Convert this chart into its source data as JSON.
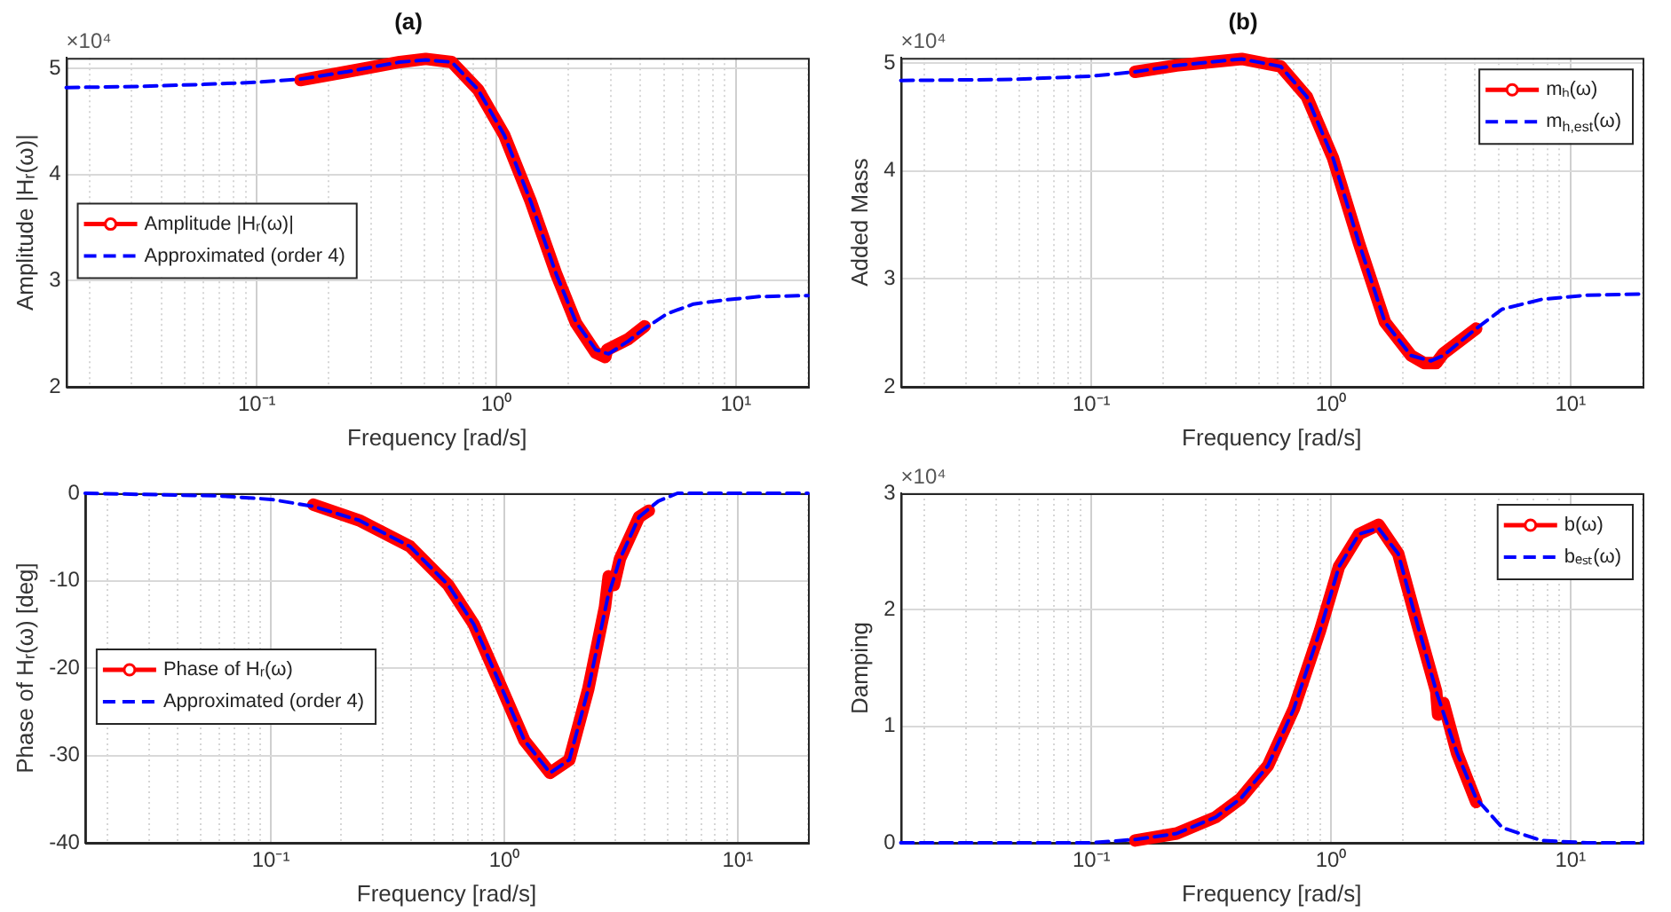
{
  "chart_data": [
    {
      "type": "line",
      "title": "(a)",
      "xlabel": "Frequency [rad/s]",
      "ylabel": "Amplitude |Hᵣ(ω)|",
      "annotations": [
        "×10⁴"
      ],
      "log": "x",
      "grid": true,
      "legend": "left",
      "xlim": [
        0.016,
        20
      ],
      "xticks": [
        {
          "value": 0.02,
          "label": null
        },
        {
          "value": 0.03,
          "label": null
        },
        {
          "value": 0.04,
          "label": null
        },
        {
          "value": 0.05,
          "label": null
        },
        {
          "value": 0.06,
          "label": null
        },
        {
          "value": 0.07,
          "label": null
        },
        {
          "value": 0.08,
          "label": null
        },
        {
          "value": 0.09,
          "label": null
        },
        {
          "value": 0.1,
          "label": "10⁻¹"
        },
        {
          "value": 0.2,
          "label": null
        },
        {
          "value": 0.3,
          "label": null
        },
        {
          "value": 0.4,
          "label": null
        },
        {
          "value": 0.5,
          "label": null
        },
        {
          "value": 0.6,
          "label": null
        },
        {
          "value": 0.7,
          "label": null
        },
        {
          "value": 0.8,
          "label": null
        },
        {
          "value": 0.9,
          "label": null
        },
        {
          "value": 1,
          "label": "10⁰"
        },
        {
          "value": 2,
          "label": null
        },
        {
          "value": 3,
          "label": null
        },
        {
          "value": 4,
          "label": null
        },
        {
          "value": 5,
          "label": null
        },
        {
          "value": 6,
          "label": null
        },
        {
          "value": 7,
          "label": null
        },
        {
          "value": 8,
          "label": null
        },
        {
          "value": 9,
          "label": null
        },
        {
          "value": 10,
          "label": "10¹"
        },
        {
          "value": 20,
          "label": null
        }
      ],
      "ylim": [
        2,
        5.1
      ],
      "yticks": [
        2,
        3,
        4,
        5
      ],
      "series": [
        {
          "name": "Amplitude |Hᵣ(ω)|",
          "color": "#ff0000",
          "marker": "circle",
          "line_style": "solid",
          "x": [
            0.152,
            0.239,
            0.395,
            0.507,
            0.652,
            0.839,
            1.08,
            1.39,
            1.78,
            2.15,
            2.6,
            2.85,
            2.9,
            3.55,
            4.16
          ],
          "values": [
            4.89,
            4.97,
            5.06,
            5.09,
            5.06,
            4.8,
            4.37,
            3.75,
            3.06,
            2.6,
            2.32,
            2.28,
            2.35,
            2.45,
            2.57
          ]
        },
        {
          "name": "Approximated (order 4)",
          "color": "#0000ff",
          "marker": "none",
          "line_style": "dashed",
          "x": [
            0.016,
            0.032,
            0.06,
            0.1,
            0.152,
            0.239,
            0.395,
            0.507,
            0.652,
            0.839,
            1.08,
            1.39,
            1.78,
            2.15,
            2.6,
            2.94,
            3.55,
            4.16,
            5.18,
            6.66,
            9.11,
            12.5,
            20
          ],
          "values": [
            4.82,
            4.83,
            4.85,
            4.87,
            4.9,
            4.97,
            5.06,
            5.08,
            5.06,
            4.8,
            4.37,
            3.75,
            3.06,
            2.61,
            2.35,
            2.31,
            2.43,
            2.55,
            2.69,
            2.78,
            2.82,
            2.85,
            2.86
          ]
        }
      ]
    },
    {
      "type": "line",
      "title": "(b)",
      "xlabel": "Frequency [rad/s]",
      "ylabel": "Added Mass",
      "annotations": [
        "×10⁴"
      ],
      "log": "x",
      "grid": true,
      "legend": "top right",
      "xlim": [
        0.016,
        20
      ],
      "xticks": [
        {
          "value": 0.02,
          "label": null
        },
        {
          "value": 0.03,
          "label": null
        },
        {
          "value": 0.04,
          "label": null
        },
        {
          "value": 0.05,
          "label": null
        },
        {
          "value": 0.06,
          "label": null
        },
        {
          "value": 0.07,
          "label": null
        },
        {
          "value": 0.08,
          "label": null
        },
        {
          "value": 0.09,
          "label": null
        },
        {
          "value": 0.1,
          "label": "10⁻¹"
        },
        {
          "value": 0.2,
          "label": null
        },
        {
          "value": 0.3,
          "label": null
        },
        {
          "value": 0.4,
          "label": null
        },
        {
          "value": 0.5,
          "label": null
        },
        {
          "value": 0.6,
          "label": null
        },
        {
          "value": 0.7,
          "label": null
        },
        {
          "value": 0.8,
          "label": null
        },
        {
          "value": 0.9,
          "label": null
        },
        {
          "value": 1,
          "label": "10⁰"
        },
        {
          "value": 2,
          "label": null
        },
        {
          "value": 3,
          "label": null
        },
        {
          "value": 4,
          "label": null
        },
        {
          "value": 5,
          "label": null
        },
        {
          "value": 6,
          "label": null
        },
        {
          "value": 7,
          "label": null
        },
        {
          "value": 8,
          "label": null
        },
        {
          "value": 9,
          "label": null
        },
        {
          "value": 10,
          "label": "10¹"
        },
        {
          "value": 20,
          "label": null
        }
      ],
      "ylim": [
        2,
        5.05
      ],
      "yticks": [
        2,
        3,
        4,
        5
      ],
      "series": [
        {
          "name": "mₕ(ω)",
          "color": "#ff0000",
          "marker": "circle",
          "line_style": "solid",
          "x": [
            0.152,
            0.227,
            0.424,
            0.617,
            0.793,
            1.02,
            1.31,
            1.68,
            2.16,
            2.45,
            2.75,
            2.95,
            4.04
          ],
          "values": [
            4.92,
            4.98,
            5.04,
            4.97,
            4.69,
            4.12,
            3.33,
            2.6,
            2.29,
            2.22,
            2.22,
            2.31,
            2.54
          ]
        },
        {
          "name": "m$_{h,est}$(ω)",
          "color": "#0000ff",
          "marker": "none",
          "line_style": "dashed",
          "x": [
            0.016,
            0.047,
            0.1,
            0.152,
            0.227,
            0.424,
            0.617,
            0.793,
            1.02,
            1.31,
            1.68,
            2.16,
            2.61,
            2.95,
            4.04,
            5.19,
            7.56,
            11.7,
            20
          ],
          "values": [
            4.84,
            4.85,
            4.88,
            4.92,
            4.98,
            5.04,
            4.97,
            4.69,
            4.12,
            3.33,
            2.6,
            2.29,
            2.24,
            2.29,
            2.54,
            2.72,
            2.81,
            2.85,
            2.86
          ]
        }
      ]
    },
    {
      "type": "line",
      "xlabel": "Frequency [rad/s]",
      "ylabel": "Phase of Hᵣ(ω) [deg]",
      "log": "x",
      "grid": true,
      "legend": "left",
      "xlim": [
        0.016,
        20
      ],
      "xticks": [
        {
          "value": 0.02,
          "label": null
        },
        {
          "value": 0.03,
          "label": null
        },
        {
          "value": 0.04,
          "label": null
        },
        {
          "value": 0.05,
          "label": null
        },
        {
          "value": 0.06,
          "label": null
        },
        {
          "value": 0.07,
          "label": null
        },
        {
          "value": 0.08,
          "label": null
        },
        {
          "value": 0.09,
          "label": null
        },
        {
          "value": 0.1,
          "label": "10⁻¹"
        },
        {
          "value": 0.2,
          "label": null
        },
        {
          "value": 0.3,
          "label": null
        },
        {
          "value": 0.4,
          "label": null
        },
        {
          "value": 0.5,
          "label": null
        },
        {
          "value": 0.6,
          "label": null
        },
        {
          "value": 0.7,
          "label": null
        },
        {
          "value": 0.8,
          "label": null
        },
        {
          "value": 0.9,
          "label": null
        },
        {
          "value": 1,
          "label": "10⁰"
        },
        {
          "value": 2,
          "label": null
        },
        {
          "value": 3,
          "label": null
        },
        {
          "value": 4,
          "label": null
        },
        {
          "value": 5,
          "label": null
        },
        {
          "value": 6,
          "label": null
        },
        {
          "value": 7,
          "label": null
        },
        {
          "value": 8,
          "label": null
        },
        {
          "value": 9,
          "label": null
        },
        {
          "value": 10,
          "label": "10¹"
        },
        {
          "value": 20,
          "label": null
        }
      ],
      "ylim": [
        -40,
        0
      ],
      "yticks": [
        -40,
        -30,
        -20,
        -10,
        0
      ],
      "series": [
        {
          "name": "Phase of Hᵣ(ω)",
          "color": "#ff0000",
          "marker": "circle",
          "line_style": "solid",
          "x": [
            0.152,
            0.239,
            0.395,
            0.575,
            0.74,
            0.95,
            1.22,
            1.57,
            1.9,
            2.29,
            2.7,
            2.8,
            2.95,
            3.13,
            3.78,
            4.16
          ],
          "values": [
            -1.3,
            -3.1,
            -6.1,
            -10.5,
            -15,
            -21.6,
            -28.3,
            -32,
            -30.5,
            -22.4,
            -13,
            -9.5,
            -10.5,
            -7.5,
            -2.7,
            -2
          ]
        },
        {
          "name": "Approximated (order 4)",
          "color": "#0000ff",
          "marker": "none",
          "line_style": "dashed",
          "x": [
            0.016,
            0.06,
            0.1,
            0.152,
            0.239,
            0.395,
            0.575,
            0.74,
            0.95,
            1.22,
            1.57,
            1.9,
            2.29,
            2.77,
            3.13,
            3.78,
            4.57,
            5.52,
            7.1,
            20
          ],
          "values": [
            0,
            -0.3,
            -0.7,
            -1.5,
            -3.1,
            -6.1,
            -10.5,
            -15,
            -21.6,
            -28.3,
            -32,
            -30.5,
            -22.4,
            -12,
            -7.5,
            -2.7,
            -0.9,
            0,
            0,
            0
          ]
        }
      ]
    },
    {
      "type": "line",
      "xlabel": "Frequency [rad/s]",
      "ylabel": "Damping",
      "annotations": [
        "×10⁴"
      ],
      "log": "x",
      "grid": true,
      "legend": "top right",
      "xlim": [
        0.016,
        20
      ],
      "xticks": [
        {
          "value": 0.02,
          "label": null
        },
        {
          "value": 0.03,
          "label": null
        },
        {
          "value": 0.04,
          "label": null
        },
        {
          "value": 0.05,
          "label": null
        },
        {
          "value": 0.06,
          "label": null
        },
        {
          "value": 0.07,
          "label": null
        },
        {
          "value": 0.08,
          "label": null
        },
        {
          "value": 0.09,
          "label": null
        },
        {
          "value": 0.1,
          "label": "10⁻¹"
        },
        {
          "value": 0.2,
          "label": null
        },
        {
          "value": 0.3,
          "label": null
        },
        {
          "value": 0.4,
          "label": null
        },
        {
          "value": 0.5,
          "label": null
        },
        {
          "value": 0.6,
          "label": null
        },
        {
          "value": 0.7,
          "label": null
        },
        {
          "value": 0.8,
          "label": null
        },
        {
          "value": 0.9,
          "label": null
        },
        {
          "value": 1,
          "label": "10⁰"
        },
        {
          "value": 2,
          "label": null
        },
        {
          "value": 3,
          "label": null
        },
        {
          "value": 4,
          "label": null
        },
        {
          "value": 5,
          "label": null
        },
        {
          "value": 6,
          "label": null
        },
        {
          "value": 7,
          "label": null
        },
        {
          "value": 8,
          "label": null
        },
        {
          "value": 9,
          "label": null
        },
        {
          "value": 10,
          "label": "10¹"
        },
        {
          "value": 20,
          "label": null
        }
      ],
      "ylim": [
        0,
        3
      ],
      "yticks": [
        0,
        1,
        2,
        3
      ],
      "series": [
        {
          "name": "b(ω)",
          "color": "#ff0000",
          "marker": "circle",
          "line_style": "solid",
          "x": [
            0.152,
            0.227,
            0.33,
            0.42,
            0.545,
            0.7,
            0.9,
            1.08,
            1.31,
            1.58,
            1.91,
            2.3,
            2.75,
            2.8,
            2.95,
            3.36,
            4.04
          ],
          "values": [
            0.02,
            0.08,
            0.22,
            0.38,
            0.66,
            1.15,
            1.82,
            2.37,
            2.65,
            2.73,
            2.48,
            1.87,
            1.3,
            1.1,
            1.2,
            0.77,
            0.35
          ]
        },
        {
          "name": "bₑₛₜ(ω)",
          "color": "#0000ff",
          "marker": "none",
          "line_style": "dashed",
          "x": [
            0.016,
            0.1,
            0.155,
            0.227,
            0.33,
            0.42,
            0.545,
            0.7,
            0.9,
            1.08,
            1.31,
            1.58,
            1.91,
            2.3,
            2.78,
            3.36,
            4.04,
            5.19,
            7.56,
            11.7,
            20
          ],
          "values": [
            0,
            0,
            0.03,
            0.08,
            0.22,
            0.38,
            0.66,
            1.15,
            1.82,
            2.37,
            2.65,
            2.7,
            2.48,
            1.87,
            1.27,
            0.77,
            0.38,
            0.13,
            0.02,
            0,
            0
          ]
        }
      ]
    }
  ]
}
